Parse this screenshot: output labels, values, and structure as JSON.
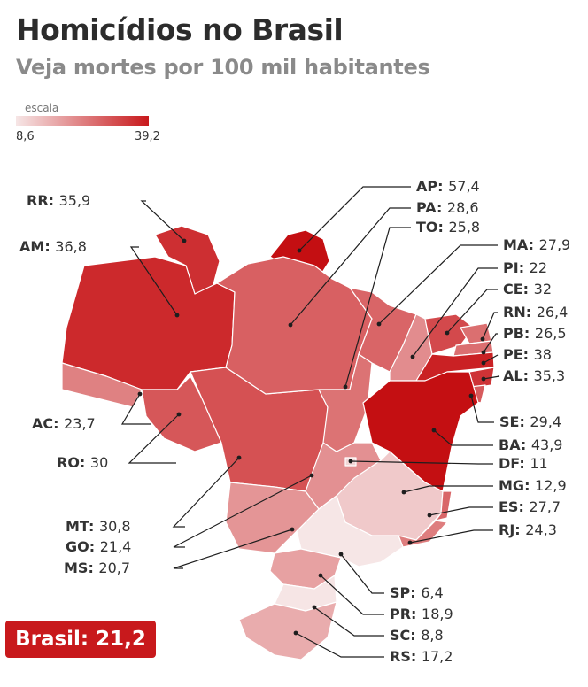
{
  "title": "Homicídios no Brasil",
  "subtitle": "Veja mortes por 100 mil habitantes",
  "scale": {
    "label": "escala",
    "min": "8,6",
    "max": "39,2",
    "min_value": 8.6,
    "max_value": 39.2,
    "color_low": "#f6e6e6",
    "color_high": "#c8191c"
  },
  "states": [
    {
      "uf": "RR",
      "value": "35,9",
      "rate": 35.9
    },
    {
      "uf": "AM",
      "value": "36,8",
      "rate": 36.8
    },
    {
      "uf": "AC",
      "value": "23,7",
      "rate": 23.7
    },
    {
      "uf": "RO",
      "value": "30",
      "rate": 30
    },
    {
      "uf": "MT",
      "value": "30,8",
      "rate": 30.8
    },
    {
      "uf": "GO",
      "value": "21,4",
      "rate": 21.4
    },
    {
      "uf": "MS",
      "value": "20,7",
      "rate": 20.7
    },
    {
      "uf": "AP",
      "value": "57,4",
      "rate": 57.4
    },
    {
      "uf": "PA",
      "value": "28,6",
      "rate": 28.6
    },
    {
      "uf": "TO",
      "value": "25,8",
      "rate": 25.8
    },
    {
      "uf": "MA",
      "value": "27,9",
      "rate": 27.9
    },
    {
      "uf": "PI",
      "value": "22",
      "rate": 22
    },
    {
      "uf": "CE",
      "value": "32",
      "rate": 32
    },
    {
      "uf": "RN",
      "value": "26,4",
      "rate": 26.4
    },
    {
      "uf": "PB",
      "value": "26,5",
      "rate": 26.5
    },
    {
      "uf": "PE",
      "value": "38",
      "rate": 38
    },
    {
      "uf": "AL",
      "value": "35,3",
      "rate": 35.3
    },
    {
      "uf": "SE",
      "value": "29,4",
      "rate": 29.4
    },
    {
      "uf": "BA",
      "value": "43,9",
      "rate": 43.9
    },
    {
      "uf": "DF",
      "value": "11",
      "rate": 11
    },
    {
      "uf": "MG",
      "value": "12,9",
      "rate": 12.9
    },
    {
      "uf": "ES",
      "value": "27,7",
      "rate": 27.7
    },
    {
      "uf": "RJ",
      "value": "24,3",
      "rate": 24.3
    },
    {
      "uf": "SP",
      "value": "6,4",
      "rate": 6.4
    },
    {
      "uf": "PR",
      "value": "18,9",
      "rate": 18.9
    },
    {
      "uf": "SC",
      "value": "8,8",
      "rate": 8.8
    },
    {
      "uf": "RS",
      "value": "17,2",
      "rate": 17.2
    }
  ],
  "total": {
    "label": "Brasil:",
    "value": "21,2",
    "rate": 21.2
  }
}
